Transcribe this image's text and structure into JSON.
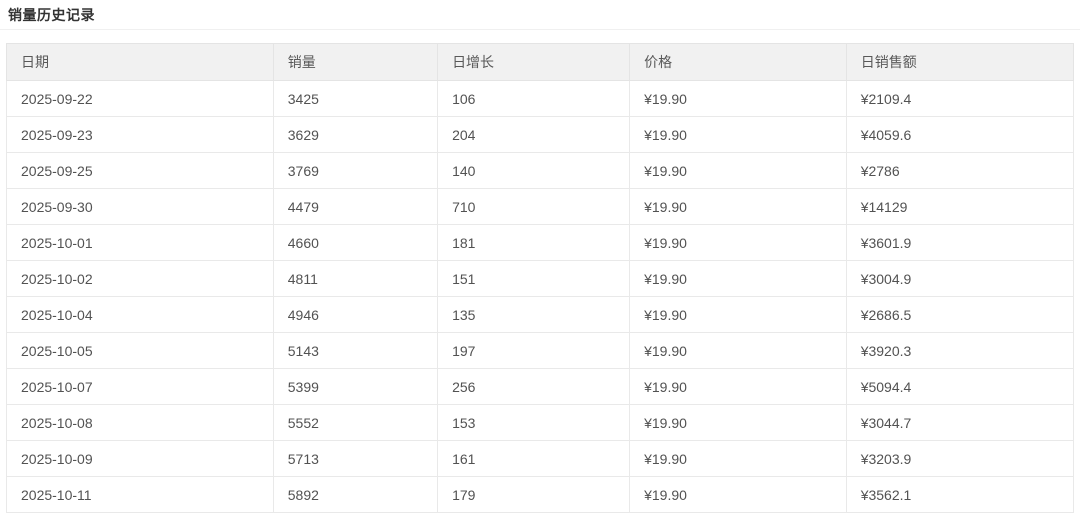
{
  "page": {
    "title": "销量历史记录"
  },
  "table": {
    "columns": [
      {
        "key": "date",
        "label": "日期"
      },
      {
        "key": "sales",
        "label": "销量"
      },
      {
        "key": "growth",
        "label": "日增长"
      },
      {
        "key": "price",
        "label": "价格"
      },
      {
        "key": "revenue",
        "label": "日销售额"
      }
    ],
    "rows": [
      [
        "2025-09-22",
        "3425",
        "106",
        "¥19.90",
        "¥2109.4"
      ],
      [
        "2025-09-23",
        "3629",
        "204",
        "¥19.90",
        "¥4059.6"
      ],
      [
        "2025-09-25",
        "3769",
        "140",
        "¥19.90",
        "¥2786"
      ],
      [
        "2025-09-30",
        "4479",
        "710",
        "¥19.90",
        "¥14129"
      ],
      [
        "2025-10-01",
        "4660",
        "181",
        "¥19.90",
        "¥3601.9"
      ],
      [
        "2025-10-02",
        "4811",
        "151",
        "¥19.90",
        "¥3004.9"
      ],
      [
        "2025-10-04",
        "4946",
        "135",
        "¥19.90",
        "¥2686.5"
      ],
      [
        "2025-10-05",
        "5143",
        "197",
        "¥19.90",
        "¥3920.3"
      ],
      [
        "2025-10-07",
        "5399",
        "256",
        "¥19.90",
        "¥5094.4"
      ],
      [
        "2025-10-08",
        "5552",
        "153",
        "¥19.90",
        "¥3044.7"
      ],
      [
        "2025-10-09",
        "5713",
        "161",
        "¥19.90",
        "¥3203.9"
      ],
      [
        "2025-10-11",
        "5892",
        "179",
        "¥19.90",
        "¥3562.1"
      ]
    ]
  },
  "colors": {
    "header_background": "#f1f1f1",
    "border": "#e9e9e9",
    "header_text": "#595959",
    "body_text": "#525252",
    "title_text": "#333333"
  }
}
